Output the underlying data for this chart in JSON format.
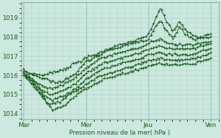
{
  "background_color": "#cce8df",
  "grid_color": "#aacfc5",
  "line_color": "#1a5c1a",
  "x_tick_labels": [
    "Mar",
    "Mer",
    "Jeu",
    "Ven"
  ],
  "x_tick_positions": [
    0,
    48,
    96,
    144
  ],
  "xlabel": "Pression niveau de la mer( hPa )",
  "ylim": [
    1013.7,
    1019.8
  ],
  "yticks": [
    1014,
    1015,
    1016,
    1017,
    1018,
    1019
  ],
  "xlim": [
    -2,
    150
  ],
  "figsize": [
    3.2,
    2.0
  ],
  "dpi": 100
}
